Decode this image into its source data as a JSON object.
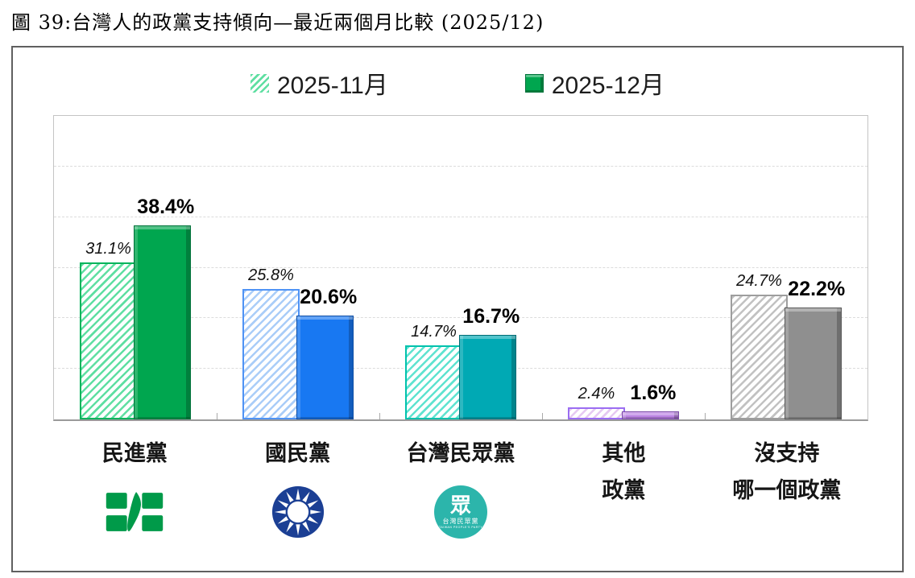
{
  "title": "圖 39:台灣人的政黨支持傾向—最近兩個月比較 (2025/12)",
  "legend": {
    "nov": {
      "label": "2025-11月",
      "swatch": "hatched-green"
    },
    "dec": {
      "label": "2025-12月",
      "swatch": "solid-green"
    }
  },
  "chart_data": {
    "type": "bar",
    "title": "台灣人的政黨支持傾向—最近兩個月比較 (2025/12)",
    "categories": [
      "民進黨",
      "國民黨",
      "台灣民眾黨",
      "其他政黨",
      "沒支持哪一個政黨"
    ],
    "series": [
      {
        "name": "2025-11月",
        "style": "hatched",
        "values": [
          31.1,
          25.8,
          14.7,
          2.4,
          24.7
        ]
      },
      {
        "name": "2025-12月",
        "style": "solid",
        "values": [
          38.4,
          20.6,
          16.7,
          1.6,
          22.2
        ]
      }
    ],
    "ylim": [
      0,
      60
    ],
    "gridline_step": 10,
    "grid": true,
    "legend_position": "top",
    "value_label_format": "percent"
  },
  "groups": [
    {
      "label_lines": [
        "民進黨",
        ""
      ],
      "nov_label": "31.1%",
      "dec_label": "38.4%",
      "icon": "dpp-logo",
      "colors": {
        "solid": "#00a64f",
        "solid_dark": "#00713a",
        "hatch": "#5fdfa2",
        "hatch_border": "#00b45c"
      }
    },
    {
      "label_lines": [
        "國民黨",
        ""
      ],
      "nov_label": "25.8%",
      "dec_label": "20.6%",
      "icon": "kmt-logo",
      "colors": {
        "solid": "#1878f2",
        "solid_dark": "#0c4ca4",
        "hatch": "#aacdf8",
        "hatch_border": "#4f93f5"
      }
    },
    {
      "label_lines": [
        "台灣民眾黨",
        ""
      ],
      "nov_label": "14.7%",
      "dec_label": "16.7%",
      "icon": "tpp-logo",
      "colors": {
        "solid": "#00a9b4",
        "solid_dark": "#006b74",
        "hatch": "#5fe3d0",
        "hatch_border": "#00c2ad"
      }
    },
    {
      "label_lines": [
        "其他",
        "政黨"
      ],
      "nov_label": "2.4%",
      "dec_label": "1.6%",
      "icon": null,
      "colors": {
        "solid": "#bb84e3",
        "solid_dark": "#7a4aa8",
        "hatch": "#e6c9f2",
        "hatch_border": "#9b6df2"
      }
    },
    {
      "label_lines": [
        "沒支持",
        "哪一個政黨"
      ],
      "nov_label": "24.7%",
      "dec_label": "22.2%",
      "icon": null,
      "colors": {
        "solid": "#8f8f8f",
        "solid_dark": "#595959",
        "hatch": "#c2c2c2",
        "hatch_border": "#9e9e9e"
      }
    }
  ],
  "icons": {
    "dpp": {
      "name": "dpp-logo",
      "color": "#009a49"
    },
    "kmt": {
      "name": "kmt-logo",
      "color": "#1b3f94"
    },
    "tpp": {
      "name": "tpp-logo",
      "color": "#2cb5ab",
      "glyph": "眾",
      "text": "台灣民眾黨",
      "subtext": "TAIWAN PEOPLE'S PARTY"
    }
  }
}
